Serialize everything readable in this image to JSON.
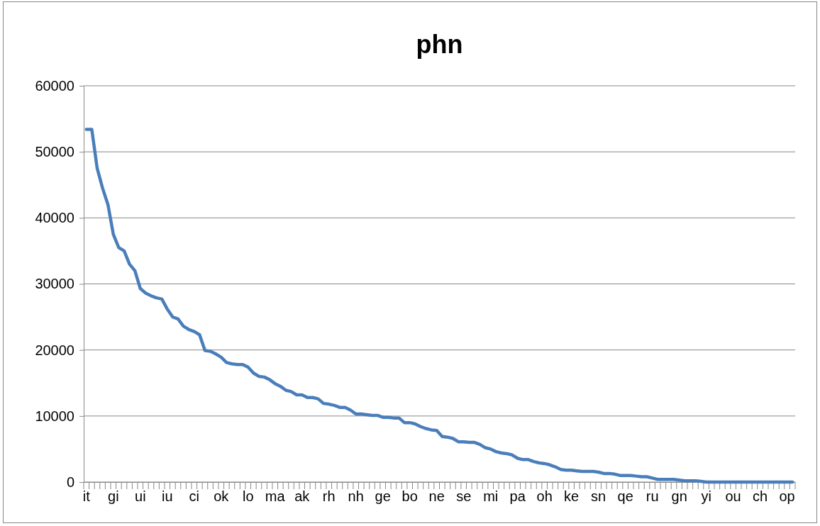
{
  "chart_data": {
    "type": "line",
    "title": "phn",
    "categories": [
      "it",
      null,
      null,
      null,
      null,
      "gi",
      null,
      null,
      null,
      null,
      "ui",
      null,
      null,
      null,
      null,
      "iu",
      null,
      null,
      null,
      null,
      "ci",
      null,
      null,
      null,
      null,
      "ok",
      null,
      null,
      null,
      null,
      "lo",
      null,
      null,
      null,
      null,
      "ma",
      null,
      null,
      null,
      null,
      "ak",
      null,
      null,
      null,
      null,
      "rh",
      null,
      null,
      null,
      null,
      "nh",
      null,
      null,
      null,
      null,
      "ge",
      null,
      null,
      null,
      null,
      "bo",
      null,
      null,
      null,
      null,
      "ne",
      null,
      null,
      null,
      null,
      "se",
      null,
      null,
      null,
      null,
      "mi",
      null,
      null,
      null,
      null,
      "pa",
      null,
      null,
      null,
      null,
      "oh",
      null,
      null,
      null,
      null,
      "ke",
      null,
      null,
      null,
      null,
      "sn",
      null,
      null,
      null,
      null,
      "qe",
      null,
      null,
      null,
      null,
      "ru",
      null,
      null,
      null,
      null,
      "gn",
      null,
      null,
      null,
      null,
      "yi",
      null,
      null,
      null,
      null,
      "ou",
      null,
      null,
      null,
      null,
      "ch",
      null,
      null,
      null,
      null,
      "op",
      null
    ],
    "series": [
      {
        "color": "#4a7ebb",
        "values": [
          53400,
          53400,
          47500,
          44500,
          42000,
          37500,
          35500,
          35000,
          33000,
          32000,
          29300,
          28600,
          28200,
          27900,
          27700,
          26200,
          25000,
          24700,
          23600,
          23100,
          22800,
          22300,
          19900,
          19800,
          19400,
          18900,
          18100,
          17900,
          17800,
          17800,
          17400,
          16500,
          16000,
          15900,
          15500,
          14900,
          14500,
          13900,
          13700,
          13200,
          13200,
          12800,
          12800,
          12600,
          11900,
          11800,
          11600,
          11300,
          11300,
          10900,
          10300,
          10300,
          10200,
          10100,
          10100,
          9800,
          9800,
          9700,
          9700,
          9000,
          9000,
          8800,
          8400,
          8100,
          7900,
          7800,
          6900,
          6800,
          6600,
          6100,
          6100,
          6000,
          6000,
          5700,
          5200,
          5000,
          4600,
          4400,
          4300,
          4100,
          3600,
          3400,
          3400,
          3100,
          2900,
          2800,
          2600,
          2300,
          1900,
          1800,
          1800,
          1700,
          1600,
          1600,
          1600,
          1500,
          1300,
          1300,
          1200,
          1000,
          1000,
          1000,
          900,
          800,
          800,
          600,
          400,
          400,
          400,
          400,
          300,
          200,
          200,
          200,
          100,
          0,
          0,
          0,
          0,
          0,
          0,
          0,
          0,
          0,
          0,
          0,
          0,
          0,
          0,
          0,
          0,
          0
        ]
      }
    ],
    "ylim": [
      0,
      60000
    ],
    "yticks": [
      0,
      10000,
      20000,
      30000,
      40000,
      50000,
      60000
    ],
    "grid": "y",
    "marker": "none",
    "line_style": "solid"
  }
}
